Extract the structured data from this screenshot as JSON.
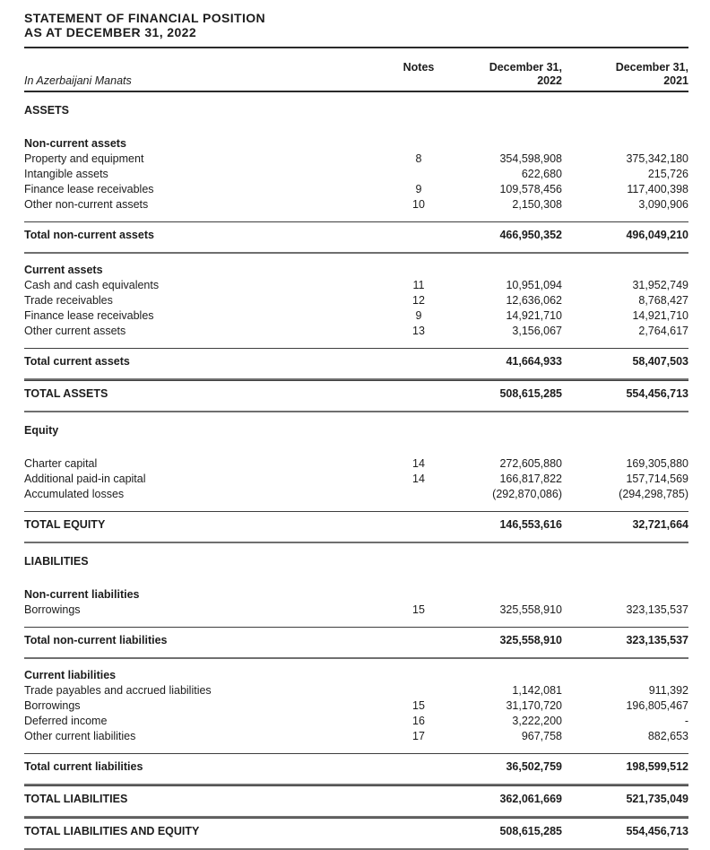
{
  "page": {
    "title_line1": "STATEMENT OF FINANCIAL POSITION",
    "title_line2": "AS AT DECEMBER 31, 2022"
  },
  "colors": {
    "paper": "#ffffff",
    "text": "#1c1c1c",
    "rule_dark": "#2a2a2a",
    "rule_thin": "#3e3e3e",
    "rule_total": "#6f6f6f"
  },
  "table": {
    "unit_label": "In Azerbaijani Manats",
    "col_notes": "Notes",
    "col_2022_line1": "December 31,",
    "col_2022_line2": "2022",
    "col_2021_line1": "December 31,",
    "col_2021_line2": "2021",
    "rows": [
      {
        "type": "section",
        "label": "ASSETS"
      },
      {
        "type": "group",
        "label": "Non-current assets"
      },
      {
        "type": "item",
        "label": "Property and equipment",
        "note": "8",
        "v2022": "354,598,908",
        "v2021": "375,342,180"
      },
      {
        "type": "item",
        "label": "Intangible assets",
        "note": "",
        "v2022": "622,680",
        "v2021": "215,726"
      },
      {
        "type": "item",
        "label": "Finance lease receivables",
        "note": "9",
        "v2022": "109,578,456",
        "v2021": "117,400,398"
      },
      {
        "type": "item",
        "label": "Other non-current assets",
        "note": "10",
        "v2022": "2,150,308",
        "v2021": "3,090,906"
      },
      {
        "type": "total",
        "label": "Total non-current assets",
        "note": "",
        "v2022": "466,950,352",
        "v2021": "496,049,210"
      },
      {
        "type": "group",
        "label": "Current assets"
      },
      {
        "type": "item",
        "label": "Cash and cash equivalents",
        "note": "11",
        "v2022": "10,951,094",
        "v2021": "31,952,749"
      },
      {
        "type": "item",
        "label": "Trade receivables",
        "note": "12",
        "v2022": "12,636,062",
        "v2021": "8,768,427"
      },
      {
        "type": "item",
        "label": "Finance lease receivables",
        "note": "9",
        "v2022": "14,921,710",
        "v2021": "14,921,710"
      },
      {
        "type": "item",
        "label": "Other current assets",
        "note": "13",
        "v2022": "3,156,067",
        "v2021": "2,764,617"
      },
      {
        "type": "total",
        "label": "Total current assets",
        "note": "",
        "v2022": "41,664,933",
        "v2021": "58,407,503"
      },
      {
        "type": "grand",
        "label": "TOTAL ASSETS",
        "note": "",
        "v2022": "508,615,285",
        "v2021": "554,456,713"
      },
      {
        "type": "section",
        "label": "Equity"
      },
      {
        "type": "item",
        "label": "Charter capital",
        "note": "14",
        "v2022": "272,605,880",
        "v2021": "169,305,880"
      },
      {
        "type": "item",
        "label": "Additional paid-in capital",
        "note": "14",
        "v2022": "166,817,822",
        "v2021": "157,714,569"
      },
      {
        "type": "item",
        "label": "Accumulated losses",
        "note": "",
        "v2022": "(292,870,086)",
        "v2021": "(294,298,785)"
      },
      {
        "type": "grand",
        "label": "TOTAL EQUITY",
        "note": "",
        "v2022": "146,553,616",
        "v2021": "32,721,664"
      },
      {
        "type": "section",
        "label": "LIABILITIES"
      },
      {
        "type": "group",
        "label": "Non-current liabilities"
      },
      {
        "type": "item",
        "label": "Borrowings",
        "note": "15",
        "v2022": "325,558,910",
        "v2021": "323,135,537"
      },
      {
        "type": "total",
        "label": "Total non-current liabilities",
        "note": "",
        "v2022": "325,558,910",
        "v2021": "323,135,537"
      },
      {
        "type": "group",
        "label": "Current liabilities"
      },
      {
        "type": "item",
        "label": "Trade payables and accrued liabilities",
        "note": "",
        "v2022": "1,142,081",
        "v2021": "911,392"
      },
      {
        "type": "item",
        "label": "Borrowings",
        "note": "15",
        "v2022": "31,170,720",
        "v2021": "196,805,467"
      },
      {
        "type": "item",
        "label": "Deferred income",
        "note": "16",
        "v2022": "3,222,200",
        "v2021": "-"
      },
      {
        "type": "item",
        "label": "Other current liabilities",
        "note": "17",
        "v2022": "967,758",
        "v2021": "882,653"
      },
      {
        "type": "total",
        "label": "Total current liabilities",
        "note": "",
        "v2022": "36,502,759",
        "v2021": "198,599,512"
      },
      {
        "type": "grand",
        "label": "TOTAL LIABILITIES",
        "note": "",
        "v2022": "362,061,669",
        "v2021": "521,735,049"
      },
      {
        "type": "grand",
        "label": "TOTAL LIABILITIES AND EQUITY",
        "note": "",
        "v2022": "508,615,285",
        "v2021": "554,456,713"
      }
    ]
  }
}
